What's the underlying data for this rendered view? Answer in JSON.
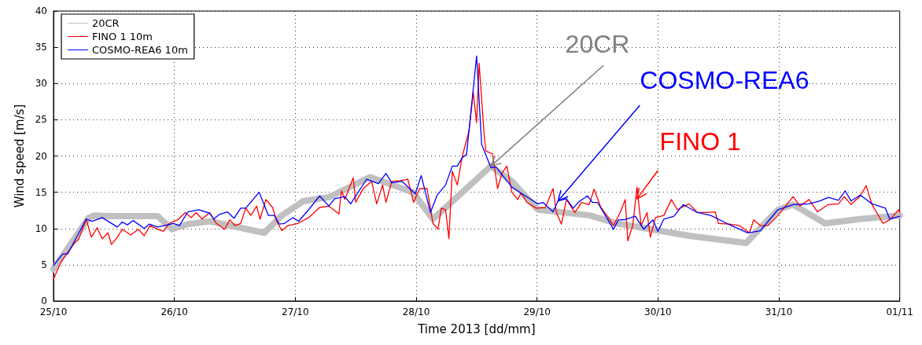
{
  "chart_data": {
    "type": "line",
    "xlabel": "Time 2013 [dd/mm]",
    "ylabel": "Wind speed [m/s]",
    "xlim": [
      "2013-10-25",
      "2013-11-01"
    ],
    "xticks": [
      {
        "value": "2013-10-25",
        "label": "25/10"
      },
      {
        "value": "2013-10-26",
        "label": "26/10"
      },
      {
        "value": "2013-10-27",
        "label": "27/10"
      },
      {
        "value": "2013-10-28",
        "label": "28/10"
      },
      {
        "value": "2013-10-29",
        "label": "29/10"
      },
      {
        "value": "2013-10-30",
        "label": "30/10"
      },
      {
        "value": "2013-10-31",
        "label": "31/10"
      },
      {
        "value": "2013-11-01",
        "label": "01/11"
      }
    ],
    "ylim": [
      0,
      40
    ],
    "yticks": [
      0,
      5,
      10,
      15,
      20,
      25,
      30,
      35,
      40
    ],
    "grid": true,
    "legend": "top left",
    "marker": "none",
    "line_style": "solid",
    "series": [
      {
        "name": "20CR",
        "color": "#c0c0c0",
        "x": [
          "2013-10-25T00:00",
          "2013-10-25T07:00",
          "2013-10-25T08:10",
          "2013-10-25T11:20",
          "2013-10-25T20:40",
          "2013-10-25T23:30",
          "2013-10-26T02:40",
          "2013-10-26T07:00",
          "2013-10-26T17:50",
          "2013-10-26T21:20",
          "2013-10-27T01:40",
          "2013-10-27T06:40",
          "2013-10-27T14:50",
          "2013-10-27T23:20",
          "2013-10-28T03:20",
          "2013-10-28T14:50",
          "2013-10-28T19:00",
          "2013-10-29T00:10",
          "2013-10-29T10:30",
          "2013-10-29T15:50",
          "2013-10-30T06:10",
          "2013-10-30T17:30",
          "2013-10-30T23:50",
          "2013-10-31T02:50",
          "2013-10-31T09:10",
          "2013-10-31T16:10",
          "2013-11-01T00:00"
        ],
        "values": [
          4.4,
          11.5,
          11.8,
          11.7,
          11.7,
          9.9,
          10.6,
          11,
          9.4,
          11.8,
          13.8,
          14.3,
          17.1,
          15,
          11.3,
          18.6,
          16.5,
          12.6,
          11.8,
          10.7,
          9,
          8,
          12.6,
          13.3,
          10.7,
          11.3,
          11.8
        ]
      },
      {
        "name": "FINO 1 10m",
        "color": "#ff0000",
        "x": [
          "2013-10-25T00:00",
          "2013-10-25T01:30",
          "2013-10-25T04:10",
          "2013-10-25T05:00",
          "2013-10-25T06:30",
          "2013-10-25T07:30",
          "2013-10-25T08:40",
          "2013-10-25T09:40",
          "2013-10-25T10:50",
          "2013-10-25T11:30",
          "2013-10-25T12:40",
          "2013-10-25T13:40",
          "2013-10-25T15:20",
          "2013-10-25T16:50",
          "2013-10-25T18:00",
          "2013-10-25T19:10",
          "2013-10-25T20:40",
          "2013-10-25T21:50",
          "2013-10-25T23:00",
          "2013-10-26T00:40",
          "2013-10-26T02:10",
          "2013-10-26T03:20",
          "2013-10-26T04:20",
          "2013-10-26T05:30",
          "2013-10-26T07:00",
          "2013-10-26T08:20",
          "2013-10-26T10:00",
          "2013-10-26T11:00",
          "2013-10-26T12:00",
          "2013-10-26T13:10",
          "2013-10-26T14:10",
          "2013-10-26T15:10",
          "2013-10-26T16:20",
          "2013-10-26T17:00",
          "2013-10-26T18:10",
          "2013-10-26T19:30",
          "2013-10-26T20:20",
          "2013-10-26T21:20",
          "2013-10-26T22:30",
          "2013-10-27T00:30",
          "2013-10-27T02:40",
          "2013-10-27T04:50",
          "2013-10-27T06:40",
          "2013-10-27T08:40",
          "2013-10-27T09:10",
          "2013-10-27T09:50",
          "2013-10-27T11:30",
          "2013-10-27T12:00",
          "2013-10-27T13:30",
          "2013-10-27T15:10",
          "2013-10-27T16:10",
          "2013-10-27T17:20",
          "2013-10-27T18:00",
          "2013-10-27T19:10",
          "2013-10-27T20:50",
          "2013-10-27T22:20",
          "2013-10-27T23:30",
          "2013-10-28T00:40",
          "2013-10-28T02:10",
          "2013-10-28T03:20",
          "2013-10-28T04:20",
          "2013-10-28T05:00",
          "2013-10-28T05:50",
          "2013-10-28T06:30",
          "2013-10-28T07:10",
          "2013-10-28T08:10",
          "2013-10-28T09:10",
          "2013-10-28T10:30",
          "2013-10-28T11:20",
          "2013-10-28T12:00",
          "2013-10-28T12:30",
          "2013-10-28T13:30",
          "2013-10-28T13:50",
          "2013-10-28T15:10",
          "2013-10-28T16:10",
          "2013-10-28T17:00",
          "2013-10-28T18:00",
          "2013-10-28T19:00",
          "2013-10-28T20:10",
          "2013-10-28T20:50",
          "2013-10-28T22:00",
          "2013-10-28T23:50",
          "2013-10-29T01:40",
          "2013-10-29T03:10",
          "2013-10-29T03:50",
          "2013-10-29T04:50",
          "2013-10-29T05:50",
          "2013-10-29T07:30",
          "2013-10-29T08:50",
          "2013-10-29T10:20",
          "2013-10-29T11:20",
          "2013-10-29T12:40",
          "2013-10-29T14:10",
          "2013-10-29T15:10",
          "2013-10-29T16:30",
          "2013-10-29T17:30",
          "2013-10-29T18:00",
          "2013-10-29T19:00",
          "2013-10-29T19:50",
          "2013-10-29T20:40",
          "2013-10-29T21:50",
          "2013-10-29T22:30",
          "2013-10-29T23:30",
          "2013-10-30T01:10",
          "2013-10-30T02:40",
          "2013-10-30T03:50",
          "2013-10-30T06:10",
          "2013-10-30T07:50",
          "2013-10-30T09:50",
          "2013-10-30T11:20",
          "2013-10-30T12:00",
          "2013-10-30T14:10",
          "2013-10-30T16:10",
          "2013-10-30T18:10",
          "2013-10-30T19:00",
          "2013-10-30T20:20",
          "2013-10-30T21:50",
          "2013-10-30T23:50",
          "2013-10-31T02:50",
          "2013-10-31T04:10",
          "2013-10-31T06:00",
          "2013-10-31T07:40",
          "2013-10-31T09:50",
          "2013-10-31T11:50",
          "2013-10-31T13:00",
          "2013-10-31T14:20",
          "2013-10-31T16:10",
          "2013-10-31T17:20",
          "2013-10-31T18:30",
          "2013-10-31T20:40",
          "2013-10-31T22:00",
          "2013-10-31T23:50",
          "2013-11-01T00:00"
        ],
        "values": [
          3,
          5.4,
          8,
          8.5,
          11.3,
          8.8,
          10.1,
          8.6,
          9.4,
          7.8,
          8.8,
          9.9,
          9.1,
          9.9,
          9,
          10.4,
          9.9,
          9.6,
          10.7,
          11.2,
          12.2,
          11.5,
          12.2,
          11.3,
          12.2,
          10.7,
          9.9,
          11.2,
          10.4,
          10.7,
          12.8,
          11.8,
          13.1,
          11.3,
          14,
          12.9,
          11,
          9.7,
          10.4,
          10.7,
          11.5,
          12.9,
          13.1,
          12,
          15.2,
          14,
          17,
          13.6,
          15.5,
          16.5,
          13.4,
          16,
          13.6,
          16.5,
          16.6,
          16.8,
          13.6,
          15.5,
          15.5,
          10.7,
          9.9,
          12.8,
          12.6,
          8.6,
          17.9,
          16,
          20,
          23.5,
          28.8,
          24.6,
          32.8,
          22.9,
          20.7,
          20.3,
          15.5,
          17.6,
          18.6,
          15,
          14,
          14.9,
          13.6,
          12.8,
          12.9,
          15.5,
          12.2,
          10.6,
          14,
          12.2,
          13.6,
          13.3,
          15.4,
          12.9,
          11.5,
          10.4,
          12.2,
          14,
          8.3,
          10.4,
          15.7,
          10.4,
          12.2,
          8.8,
          11.5,
          11.8,
          14,
          12.6,
          13.4,
          12.2,
          12.2,
          12.3,
          10.7,
          10.6,
          10.4,
          9.4,
          11.2,
          10.4,
          10.4,
          11.8,
          14.4,
          13.1,
          14,
          12.3,
          13.3,
          13.4,
          14.4,
          13.3,
          14.5,
          15.9,
          13.3,
          10.7,
          11.2,
          12.6,
          12.2
        ]
      },
      {
        "name": "COSMO-REA6 10m",
        "color": "#0000ff",
        "x": [
          "2013-10-25T00:00",
          "2013-10-25T01:50",
          "2013-10-25T02:50",
          "2013-10-25T06:30",
          "2013-10-25T07:40",
          "2013-10-25T09:40",
          "2013-10-25T12:40",
          "2013-10-25T13:40",
          "2013-10-25T14:40",
          "2013-10-25T15:50",
          "2013-10-25T18:00",
          "2013-10-25T19:00",
          "2013-10-25T20:40",
          "2013-10-25T23:50",
          "2013-10-26T01:00",
          "2013-10-26T02:40",
          "2013-10-26T04:50",
          "2013-10-26T07:00",
          "2013-10-26T07:50",
          "2013-10-26T08:50",
          "2013-10-26T10:30",
          "2013-10-26T11:50",
          "2013-10-26T13:10",
          "2013-10-26T14:10",
          "2013-10-26T16:50",
          "2013-10-26T18:40",
          "2013-10-26T19:50",
          "2013-10-26T20:50",
          "2013-10-26T21:50",
          "2013-10-26T23:30",
          "2013-10-27T00:40",
          "2013-10-27T02:40",
          "2013-10-27T04:50",
          "2013-10-27T06:40",
          "2013-10-27T07:50",
          "2013-10-27T09:50",
          "2013-10-27T11:00",
          "2013-10-27T14:10",
          "2013-10-27T16:30",
          "2013-10-27T18:00",
          "2013-10-27T19:10",
          "2013-10-27T21:10",
          "2013-10-27T23:50",
          "2013-10-28T01:00",
          "2013-10-28T02:50",
          "2013-10-28T04:10",
          "2013-10-28T05:50",
          "2013-10-28T07:10",
          "2013-10-28T08:10",
          "2013-10-28T09:10",
          "2013-10-28T10:00",
          "2013-10-28T12:00",
          "2013-10-28T13:00",
          "2013-10-28T14:50",
          "2013-10-28T15:50",
          "2013-10-28T19:00",
          "2013-10-28T21:40",
          "2013-10-29T00:10",
          "2013-10-29T01:10",
          "2013-10-29T03:10",
          "2013-10-29T04:10",
          "2013-10-29T05:50",
          "2013-10-29T07:10",
          "2013-10-29T08:20",
          "2013-10-29T10:00",
          "2013-10-29T11:00",
          "2013-10-29T12:00",
          "2013-10-29T15:10",
          "2013-10-29T16:10",
          "2013-10-29T17:20",
          "2013-10-29T19:30",
          "2013-10-29T21:10",
          "2013-10-29T23:00",
          "2013-10-30T00:00",
          "2013-10-30T01:10",
          "2013-10-30T03:10",
          "2013-10-30T05:00",
          "2013-10-30T07:50",
          "2013-10-30T10:30",
          "2013-10-30T13:40",
          "2013-10-30T17:50",
          "2013-10-30T20:20",
          "2013-10-30T23:50",
          "2013-10-31T02:50",
          "2013-10-31T06:00",
          "2013-10-31T08:10",
          "2013-10-31T09:50",
          "2013-10-31T11:50",
          "2013-10-31T13:10",
          "2013-10-31T14:20",
          "2013-10-31T16:10",
          "2013-10-31T18:30",
          "2013-10-31T21:10",
          "2013-10-31T22:00",
          "2013-11-01T00:00"
        ],
        "values": [
          4.9,
          6.5,
          6.5,
          11.3,
          11,
          11.5,
          10.2,
          10.9,
          10.5,
          11.1,
          10,
          10.6,
          10.2,
          10.7,
          10.4,
          12.3,
          12.6,
          12.1,
          11.3,
          11.9,
          12.3,
          11.4,
          12.8,
          12.8,
          15,
          11.8,
          11.8,
          10.6,
          10.7,
          11.5,
          11,
          12.6,
          14.5,
          13.1,
          14.1,
          14.4,
          13.4,
          16.8,
          16.2,
          17.6,
          16.3,
          16.5,
          14.8,
          17.3,
          12.2,
          14.6,
          16,
          18.6,
          18.6,
          19.8,
          20.2,
          33.8,
          21.6,
          18.4,
          18.5,
          15.7,
          14.5,
          13.4,
          13.6,
          12.3,
          13.8,
          14.1,
          12.8,
          13.7,
          14.5,
          13.6,
          13.6,
          9.9,
          11.2,
          11.2,
          11.7,
          9.9,
          11.2,
          9.6,
          11.3,
          11.7,
          13.3,
          12.2,
          11.8,
          10.7,
          9.4,
          9.7,
          12.6,
          13.3,
          13.4,
          13.8,
          14.3,
          13.9,
          15.2,
          13.8,
          14.6,
          13.4,
          12.8,
          11.3,
          11.7
        ]
      }
    ],
    "annotations": [
      {
        "text": "20CR",
        "x": "2013-10-28T14:50",
        "y": 18.6
      },
      {
        "text": "FINO 1",
        "x": "2013-10-29T19:50",
        "y": 14.1
      },
      {
        "text": "COSMO-REA6",
        "x": "2013-10-29T04:10",
        "y": 13.8
      }
    ]
  }
}
